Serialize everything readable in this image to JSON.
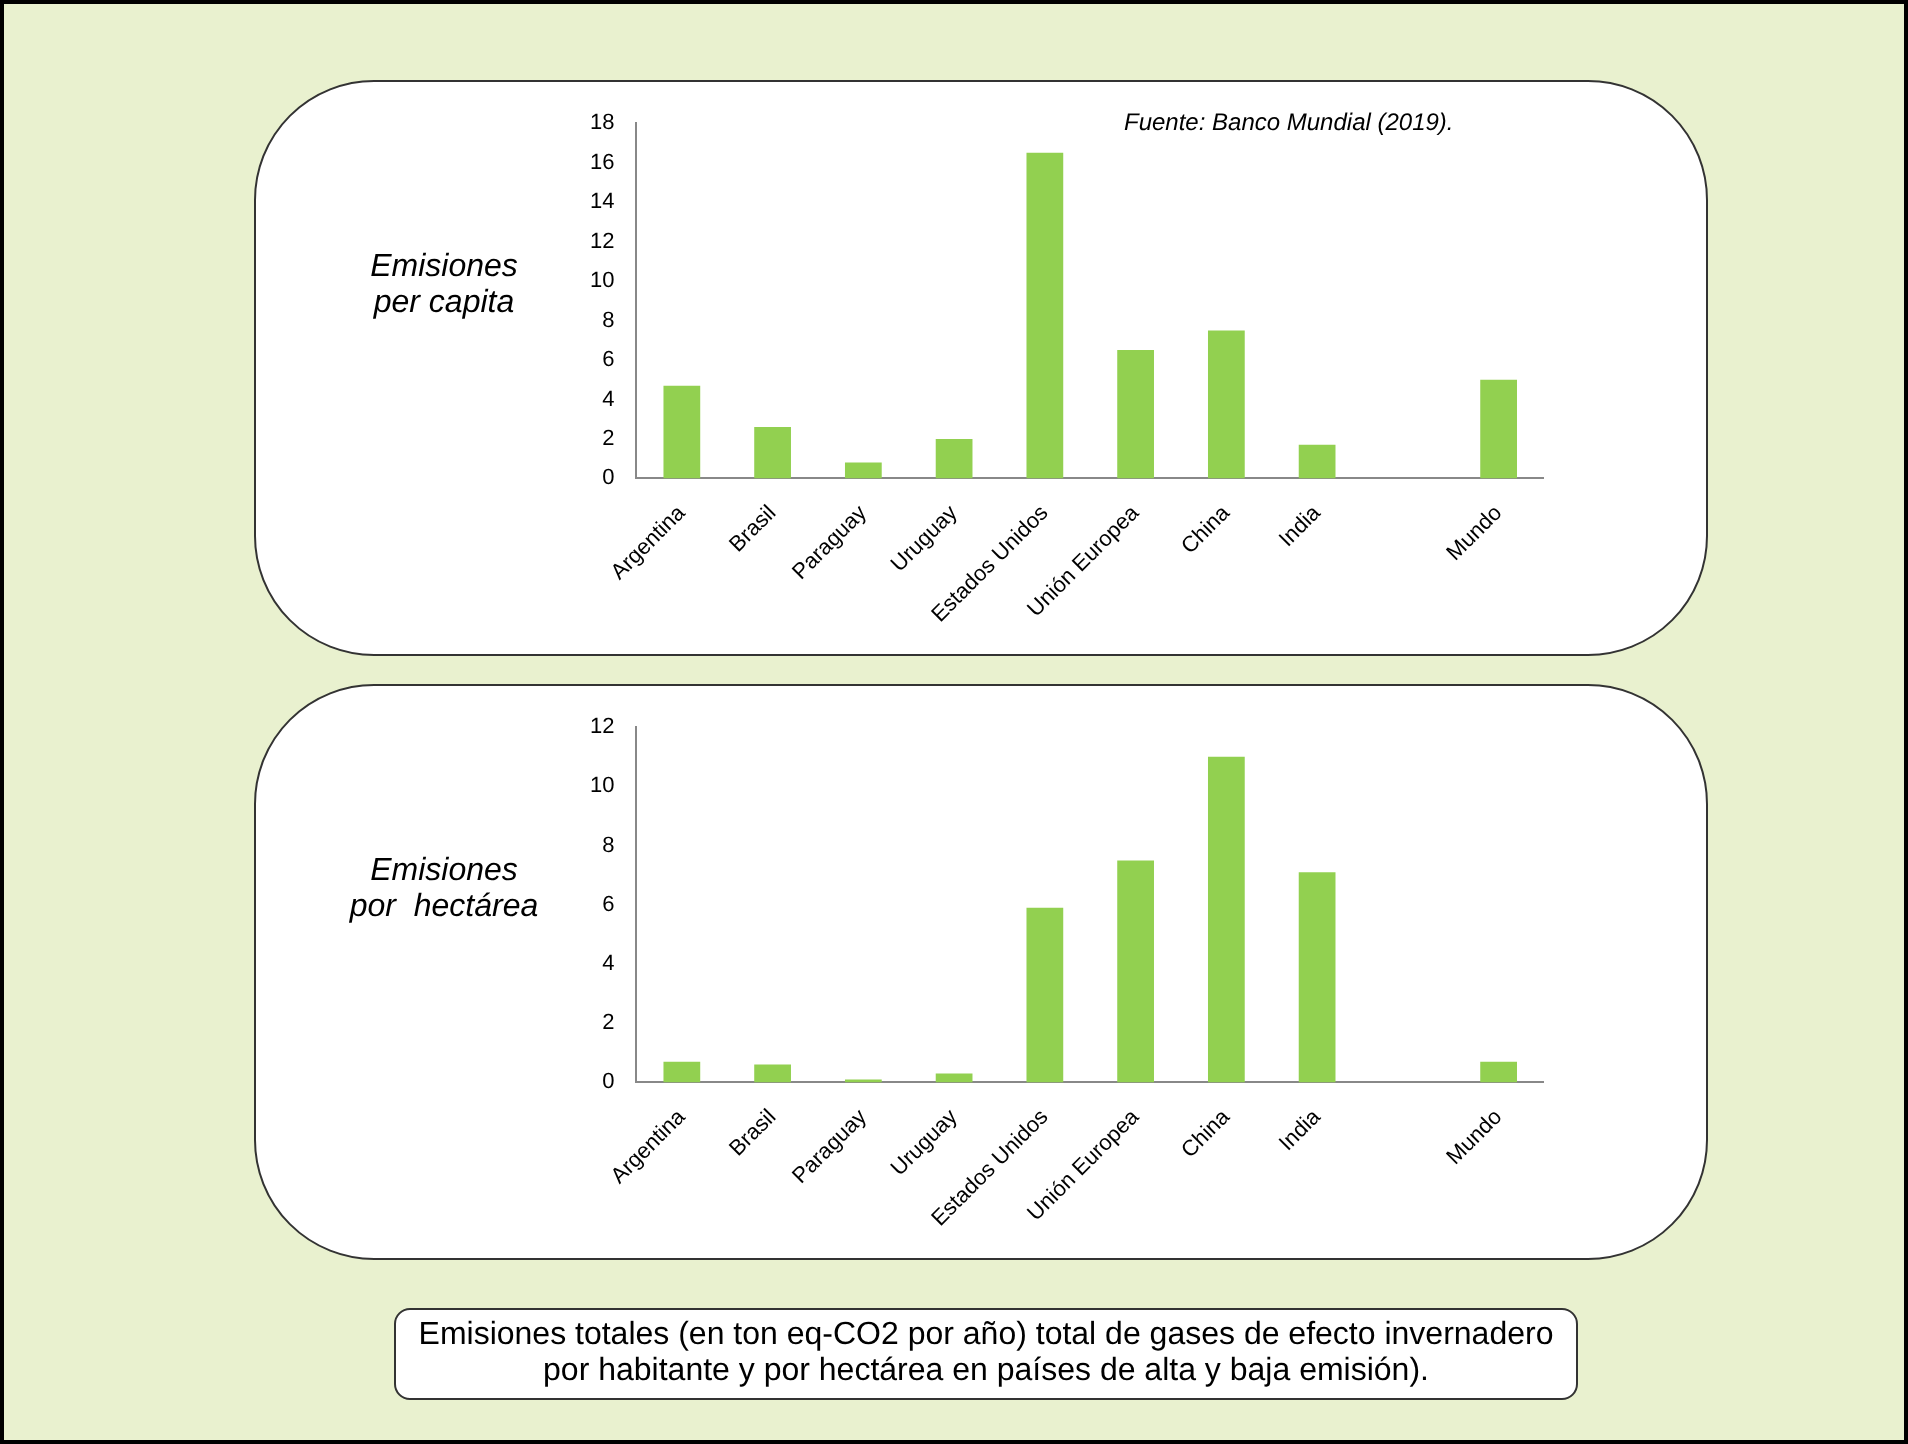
{
  "chart_data": [
    {
      "type": "bar",
      "ylabel": "Emisiones\nper capita",
      "annotations": [
        "Fuente: Banco Mundial (2019)."
      ],
      "categories": [
        "Argentina",
        "Brasil",
        "Paraguay",
        "Uruguay",
        "Estados Unidos",
        "Unión Europea",
        "China",
        "India",
        null,
        "Mundo"
      ],
      "values": [
        4.7,
        2.6,
        0.8,
        2.0,
        16.5,
        6.5,
        7.5,
        1.7,
        null,
        5.0
      ],
      "color": "#92d050",
      "ylim": [
        0,
        18
      ],
      "yticks": [
        0,
        2,
        4,
        6,
        8,
        10,
        12,
        14,
        16,
        18
      ],
      "grid": false,
      "legend": false
    },
    {
      "type": "bar",
      "ylabel": "Emisiones\npor  hectárea",
      "annotations": [
        "Emisiones totales (en ton eq-CO2 por año) total de gases de efecto invernadero por habitante y por hectárea en países de alta y baja emisión)."
      ],
      "categories": [
        "Argentina",
        "Brasil",
        "Paraguay",
        "Uruguay",
        "Estados Unidos",
        "Unión Europea",
        "China",
        "India",
        null,
        "Mundo"
      ],
      "values": [
        0.7,
        0.6,
        0.1,
        0.3,
        5.9,
        7.5,
        11.0,
        7.1,
        null,
        0.7
      ],
      "color": "#92d050",
      "ylim": [
        0,
        12
      ],
      "yticks": [
        0,
        2,
        4,
        6,
        8,
        10,
        12
      ],
      "grid": false,
      "legend": false
    }
  ]
}
